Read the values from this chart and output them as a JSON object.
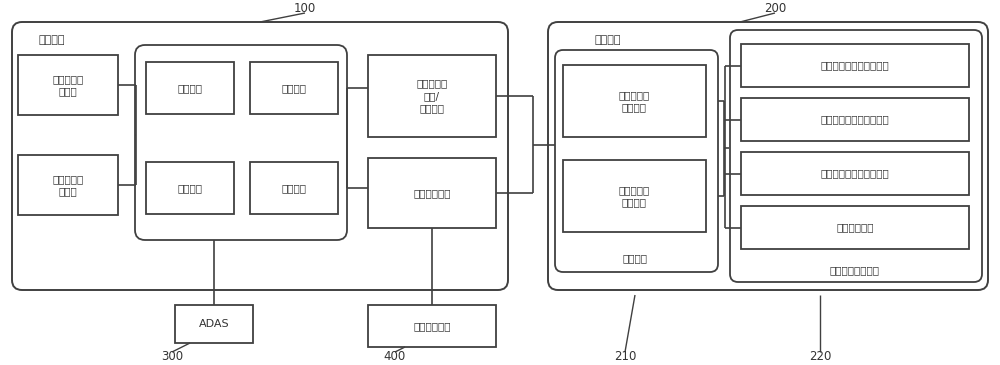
{
  "bg_color": "#ffffff",
  "line_color": "#404040",
  "fig_width": 10.0,
  "fig_height": 3.65,
  "label_100": "100",
  "label_200": "200",
  "label_300": "300",
  "label_400": "400",
  "label_210": "210",
  "label_220": "220",
  "box1_label": "车机系统",
  "box_driver_behavior": "驾驶行为识\n别模块",
  "box_emotion": "情绪状态识\n别模块",
  "box_acquire": "获取模块",
  "box_confirm": "确定模块",
  "box_set": "设定模块",
  "box_judge": "判断模块",
  "box_driver_info_req": "驾驶员信息\n请求/\n接收模块",
  "box_face_detect": "人脸检测模块",
  "box_ADAS": "ADAS",
  "box_image_collect": "图像采集装置",
  "box2_label": "后台系统",
  "box_driver_recv": "驾驶员信息\n接收模块",
  "box_driver_forward": "驾驶员信息\n转发模块",
  "box_vehicle_sys_label": "车辆系统",
  "box3_label": "公安交通管理系统",
  "box_driver_id": "驾驶员身份属性识别模块",
  "box_vehicle_video_id": "车辆图像或视频识别模块",
  "box_vehicle_video_collect": "车辆图像或视频采集模块",
  "box_vehicle_register": "车辆登记模块"
}
